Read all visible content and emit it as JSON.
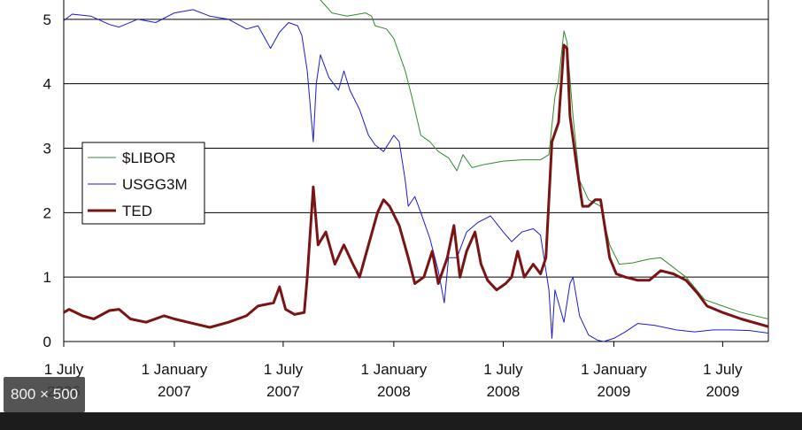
{
  "chart_data": {
    "type": "line",
    "title": "",
    "xlabel": "",
    "ylabel": "",
    "x_range": [
      "2006-07-01",
      "2009-09-15"
    ],
    "ylim": [
      0,
      5.3
    ],
    "grid": true,
    "legend_position": "left-middle",
    "y_ticks": [
      "0",
      "1",
      "2",
      "3",
      "4",
      "5"
    ],
    "x_ticks": [
      {
        "date": "2006-07-01",
        "line1": "1 July",
        "line2": "2006"
      },
      {
        "date": "2007-01-01",
        "line1": "1 January",
        "line2": "2007"
      },
      {
        "date": "2007-07-01",
        "line1": "1 July",
        "line2": "2007"
      },
      {
        "date": "2008-01-01",
        "line1": "1 January",
        "line2": "2008"
      },
      {
        "date": "2008-07-01",
        "line1": "1 July",
        "line2": "2008"
      },
      {
        "date": "2009-01-01",
        "line1": "1 January",
        "line2": "2009"
      },
      {
        "date": "2009-07-01",
        "line1": "1 July",
        "line2": "2009"
      }
    ],
    "series": [
      {
        "name": "$LIBOR",
        "color": "#2e8b2e",
        "width": 1,
        "points": [
          [
            "2006-07-01",
            5.45
          ],
          [
            "2006-10-01",
            5.38
          ],
          [
            "2007-01-01",
            5.36
          ],
          [
            "2007-05-01",
            5.36
          ],
          [
            "2007-08-01",
            5.5
          ],
          [
            "2007-08-15",
            5.5
          ],
          [
            "2007-09-01",
            5.3
          ],
          [
            "2007-09-20",
            5.1
          ],
          [
            "2007-10-15",
            5.05
          ],
          [
            "2007-11-15",
            5.1
          ],
          [
            "2007-11-25",
            5.05
          ],
          [
            "2007-12-01",
            4.9
          ],
          [
            "2007-12-20",
            4.85
          ],
          [
            "2008-01-01",
            4.7
          ],
          [
            "2008-01-20",
            4.2
          ],
          [
            "2008-01-31",
            3.8
          ],
          [
            "2008-02-15",
            3.2
          ],
          [
            "2008-03-01",
            3.1
          ],
          [
            "2008-03-15",
            2.95
          ],
          [
            "2008-04-01",
            2.85
          ],
          [
            "2008-04-15",
            2.65
          ],
          [
            "2008-04-25",
            2.9
          ],
          [
            "2008-05-10",
            2.7
          ],
          [
            "2008-06-01",
            2.75
          ],
          [
            "2008-07-01",
            2.8
          ],
          [
            "2008-08-01",
            2.82
          ],
          [
            "2008-09-01",
            2.82
          ],
          [
            "2008-09-15",
            2.9
          ],
          [
            "2008-09-25",
            3.8
          ],
          [
            "2008-10-01",
            4.05
          ],
          [
            "2008-10-10",
            4.82
          ],
          [
            "2008-10-15",
            4.65
          ],
          [
            "2008-10-25",
            3.5
          ],
          [
            "2008-11-05",
            2.5
          ],
          [
            "2008-11-20",
            2.2
          ],
          [
            "2008-12-10",
            2.1
          ],
          [
            "2008-12-25",
            1.5
          ],
          [
            "2009-01-10",
            1.2
          ],
          [
            "2009-02-01",
            1.22
          ],
          [
            "2009-03-01",
            1.28
          ],
          [
            "2009-03-20",
            1.3
          ],
          [
            "2009-04-10",
            1.15
          ],
          [
            "2009-05-01",
            1.0
          ],
          [
            "2009-06-01",
            0.65
          ],
          [
            "2009-07-01",
            0.55
          ],
          [
            "2009-08-01",
            0.45
          ],
          [
            "2009-09-15",
            0.35
          ]
        ]
      },
      {
        "name": "USGG3M",
        "color": "#1a1adb",
        "width": 1,
        "points": [
          [
            "2006-07-01",
            4.98
          ],
          [
            "2006-07-15",
            5.08
          ],
          [
            "2006-08-15",
            5.05
          ],
          [
            "2006-09-15",
            4.92
          ],
          [
            "2006-10-01",
            4.88
          ],
          [
            "2006-11-01",
            5.0
          ],
          [
            "2006-12-01",
            4.95
          ],
          [
            "2007-01-01",
            5.1
          ],
          [
            "2007-02-01",
            5.15
          ],
          [
            "2007-03-01",
            5.05
          ],
          [
            "2007-04-01",
            5.0
          ],
          [
            "2007-05-01",
            4.85
          ],
          [
            "2007-05-20",
            4.9
          ],
          [
            "2007-06-10",
            4.55
          ],
          [
            "2007-06-25",
            4.8
          ],
          [
            "2007-07-10",
            4.95
          ],
          [
            "2007-07-25",
            4.9
          ],
          [
            "2007-08-01",
            4.75
          ],
          [
            "2007-08-10",
            4.2
          ],
          [
            "2007-08-20",
            3.1
          ],
          [
            "2007-08-25",
            4.0
          ],
          [
            "2007-09-01",
            4.45
          ],
          [
            "2007-09-15",
            4.1
          ],
          [
            "2007-10-01",
            3.9
          ],
          [
            "2007-10-10",
            4.2
          ],
          [
            "2007-10-20",
            3.9
          ],
          [
            "2007-11-05",
            3.6
          ],
          [
            "2007-11-20",
            3.2
          ],
          [
            "2007-12-01",
            3.05
          ],
          [
            "2007-12-15",
            2.95
          ],
          [
            "2008-01-01",
            3.2
          ],
          [
            "2008-01-10",
            3.1
          ],
          [
            "2008-01-20",
            2.5
          ],
          [
            "2008-01-25",
            2.1
          ],
          [
            "2008-02-05",
            2.25
          ],
          [
            "2008-02-15",
            2.0
          ],
          [
            "2008-03-01",
            1.6
          ],
          [
            "2008-03-15",
            1.1
          ],
          [
            "2008-03-25",
            0.6
          ],
          [
            "2008-04-01",
            1.3
          ],
          [
            "2008-04-15",
            1.3
          ],
          [
            "2008-05-01",
            1.7
          ],
          [
            "2008-05-20",
            1.85
          ],
          [
            "2008-06-10",
            1.95
          ],
          [
            "2008-07-01",
            1.7
          ],
          [
            "2008-07-15",
            1.55
          ],
          [
            "2008-08-01",
            1.7
          ],
          [
            "2008-08-20",
            1.75
          ],
          [
            "2008-09-01",
            1.65
          ],
          [
            "2008-09-15",
            0.8
          ],
          [
            "2008-09-20",
            0.05
          ],
          [
            "2008-09-25",
            0.8
          ],
          [
            "2008-10-01",
            0.6
          ],
          [
            "2008-10-10",
            0.3
          ],
          [
            "2008-10-20",
            0.9
          ],
          [
            "2008-10-25",
            1.0
          ],
          [
            "2008-11-05",
            0.4
          ],
          [
            "2008-11-20",
            0.1
          ],
          [
            "2008-12-05",
            0.02
          ],
          [
            "2008-12-15",
            0.0
          ],
          [
            "2009-01-01",
            0.05
          ],
          [
            "2009-01-20",
            0.15
          ],
          [
            "2009-02-10",
            0.28
          ],
          [
            "2009-03-10",
            0.25
          ],
          [
            "2009-04-15",
            0.18
          ],
          [
            "2009-05-15",
            0.15
          ],
          [
            "2009-06-15",
            0.18
          ],
          [
            "2009-07-15",
            0.18
          ],
          [
            "2009-08-15",
            0.17
          ],
          [
            "2009-09-15",
            0.13
          ]
        ]
      },
      {
        "name": "TED",
        "color": "#7a1414",
        "width": 3,
        "points": [
          [
            "2006-07-01",
            0.45
          ],
          [
            "2006-07-10",
            0.5
          ],
          [
            "2006-08-01",
            0.4
          ],
          [
            "2006-08-20",
            0.35
          ],
          [
            "2006-09-15",
            0.48
          ],
          [
            "2006-10-01",
            0.5
          ],
          [
            "2006-10-20",
            0.35
          ],
          [
            "2006-11-15",
            0.3
          ],
          [
            "2006-12-15",
            0.4
          ],
          [
            "2007-01-01",
            0.35
          ],
          [
            "2007-02-01",
            0.28
          ],
          [
            "2007-03-01",
            0.22
          ],
          [
            "2007-04-01",
            0.3
          ],
          [
            "2007-05-01",
            0.4
          ],
          [
            "2007-05-20",
            0.55
          ],
          [
            "2007-06-15",
            0.6
          ],
          [
            "2007-06-25",
            0.85
          ],
          [
            "2007-07-05",
            0.5
          ],
          [
            "2007-07-20",
            0.42
          ],
          [
            "2007-08-05",
            0.45
          ],
          [
            "2007-08-10",
            1.0
          ],
          [
            "2007-08-20",
            2.4
          ],
          [
            "2007-08-28",
            1.5
          ],
          [
            "2007-09-10",
            1.7
          ],
          [
            "2007-09-25",
            1.2
          ],
          [
            "2007-10-10",
            1.5
          ],
          [
            "2007-10-25",
            1.2
          ],
          [
            "2007-11-05",
            1.0
          ],
          [
            "2007-11-20",
            1.5
          ],
          [
            "2007-12-05",
            2.0
          ],
          [
            "2007-12-15",
            2.2
          ],
          [
            "2007-12-25",
            2.1
          ],
          [
            "2008-01-10",
            1.8
          ],
          [
            "2008-01-25",
            1.3
          ],
          [
            "2008-02-05",
            0.9
          ],
          [
            "2008-02-20",
            1.0
          ],
          [
            "2008-03-05",
            1.4
          ],
          [
            "2008-03-15",
            0.9
          ],
          [
            "2008-03-30",
            1.3
          ],
          [
            "2008-04-10",
            1.8
          ],
          [
            "2008-04-20",
            1.0
          ],
          [
            "2008-05-01",
            1.4
          ],
          [
            "2008-05-15",
            1.7
          ],
          [
            "2008-05-25",
            1.2
          ],
          [
            "2008-06-05",
            0.95
          ],
          [
            "2008-06-20",
            0.8
          ],
          [
            "2008-07-05",
            0.9
          ],
          [
            "2008-07-15",
            1.0
          ],
          [
            "2008-07-25",
            1.4
          ],
          [
            "2008-08-05",
            1.0
          ],
          [
            "2008-08-20",
            1.2
          ],
          [
            "2008-09-01",
            1.05
          ],
          [
            "2008-09-10",
            1.3
          ],
          [
            "2008-09-15",
            2.2
          ],
          [
            "2008-09-20",
            3.1
          ],
          [
            "2008-10-01",
            3.4
          ],
          [
            "2008-10-10",
            4.6
          ],
          [
            "2008-10-15",
            4.55
          ],
          [
            "2008-10-20",
            3.5
          ],
          [
            "2008-10-30",
            2.8
          ],
          [
            "2008-11-10",
            2.1
          ],
          [
            "2008-11-20",
            2.1
          ],
          [
            "2008-12-01",
            2.2
          ],
          [
            "2008-12-10",
            2.2
          ],
          [
            "2008-12-25",
            1.3
          ],
          [
            "2009-01-05",
            1.05
          ],
          [
            "2009-01-20",
            1.0
          ],
          [
            "2009-02-10",
            0.95
          ],
          [
            "2009-03-01",
            0.95
          ],
          [
            "2009-03-20",
            1.1
          ],
          [
            "2009-04-10",
            1.05
          ],
          [
            "2009-05-01",
            0.95
          ],
          [
            "2009-05-20",
            0.75
          ],
          [
            "2009-06-05",
            0.55
          ],
          [
            "2009-07-01",
            0.45
          ],
          [
            "2009-08-01",
            0.35
          ],
          [
            "2009-09-15",
            0.23
          ]
        ]
      }
    ]
  },
  "overlay": {
    "size_badge": "800 × 500"
  }
}
